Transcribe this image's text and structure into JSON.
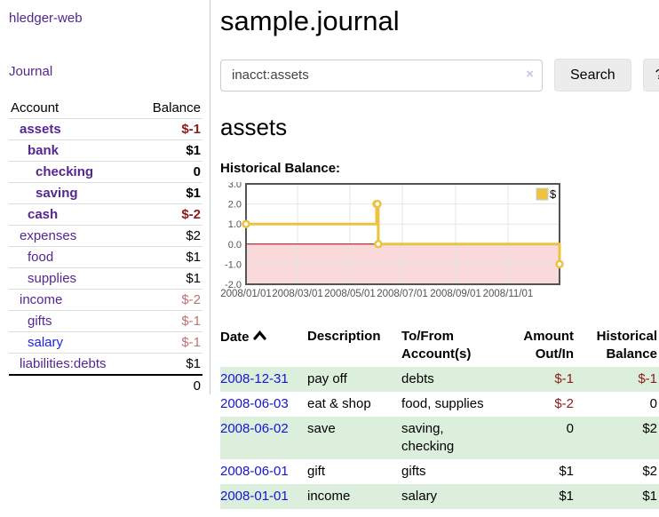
{
  "app": {
    "brand": "hledger-web",
    "nav": {
      "journal_label": "Journal"
    }
  },
  "sidebar": {
    "accounts": {
      "col_account": "Account",
      "col_balance": "Balance",
      "rows": [
        {
          "label": "assets",
          "balance": "$-1",
          "depth": 0,
          "bold": true
        },
        {
          "label": "bank",
          "balance": "$1",
          "depth": 1,
          "bold": true
        },
        {
          "label": "checking",
          "balance": "0",
          "depth": 2,
          "bold": true
        },
        {
          "label": "saving",
          "balance": "$1",
          "depth": 2,
          "bold": true
        },
        {
          "label": "cash",
          "balance": "$-2",
          "depth": 1,
          "bold": true
        },
        {
          "label": "expenses",
          "balance": "$2",
          "depth": 0,
          "bold": false
        },
        {
          "label": "food",
          "balance": "$1",
          "depth": 1,
          "bold": false
        },
        {
          "label": "supplies",
          "balance": "$1",
          "depth": 1,
          "bold": false
        },
        {
          "label": "income",
          "balance": "$-2",
          "depth": 0,
          "bold": false
        },
        {
          "label": "gifts",
          "balance": "$-1",
          "depth": 1,
          "bold": false
        },
        {
          "label": "salary",
          "balance": "$-1",
          "depth": 1,
          "bold": false,
          "variant": "blue"
        },
        {
          "label": "liabilities:debts",
          "balance": "$1",
          "depth": 0,
          "bold": false
        }
      ],
      "total": "0"
    }
  },
  "main": {
    "title": "sample.journal",
    "search": {
      "query": "inacct:assets",
      "clear_icon": "×",
      "search_label": "Search",
      "help_label": "?"
    },
    "account_heading": "assets",
    "chart_data": {
      "type": "line",
      "title": "Historical Balance:",
      "step": true,
      "series": [
        {
          "name": "$",
          "color": "#edc240",
          "points": [
            [
              "2008-01-01",
              1
            ],
            [
              "2008-06-01",
              2
            ],
            [
              "2008-06-02",
              2
            ],
            [
              "2008-06-03",
              0
            ],
            [
              "2008-12-31",
              -1
            ]
          ]
        }
      ],
      "xlim": [
        "2008-01-01",
        "2008-12-31"
      ],
      "ylim": [
        -2,
        3
      ],
      "yticks": [
        3.0,
        2.0,
        1.0,
        0.0,
        -1.0,
        -2.0
      ],
      "xticks": [
        "2008/01/01",
        "2008/03/01",
        "2008/05/01",
        "2008/07/01",
        "2008/09/01",
        "2008/11/01"
      ],
      "negative_fill": "#f9d9d9",
      "zero_line_color": "#a00000",
      "grid_color": "#e5e5e5",
      "border_color": "#545454",
      "tick_color": "#545454",
      "legend_position": "top-right"
    },
    "register": {
      "headers": {
        "date": "Date",
        "description": "Description",
        "accounts": "To/From Account(s)",
        "amount": "Amount Out/In",
        "balance": "Historical Balance"
      },
      "sort": "date ascending",
      "rows": [
        {
          "date": "2008-12-31",
          "description": "pay off",
          "accounts": "debts",
          "amount": "$-1",
          "balance": "$-1"
        },
        {
          "date": "2008-06-03",
          "description": "eat & shop",
          "accounts": "food, supplies",
          "amount": "$-2",
          "balance": "0"
        },
        {
          "date": "2008-06-02",
          "description": "save",
          "accounts": "saving,\nchecking",
          "amount": "0",
          "balance": "$2"
        },
        {
          "date": "2008-06-01",
          "description": "gift",
          "accounts": "gifts",
          "amount": "$1",
          "balance": "$2"
        },
        {
          "date": "2008-01-01",
          "description": "income",
          "accounts": "salary",
          "amount": "$1",
          "balance": "$1"
        }
      ]
    }
  }
}
